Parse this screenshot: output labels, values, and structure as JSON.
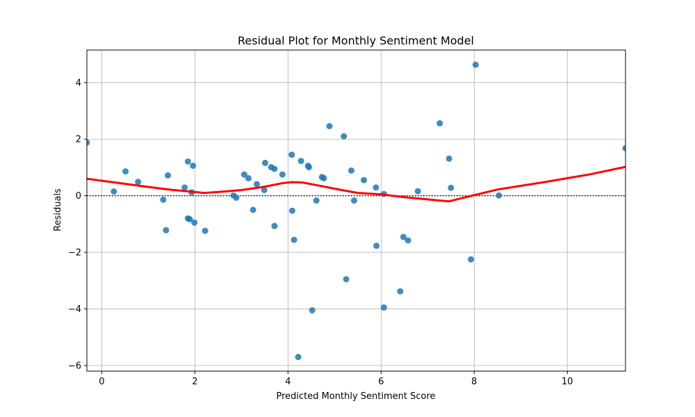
{
  "chart_data": {
    "type": "scatter",
    "title": "Residual Plot for Monthly Sentiment Model",
    "xlabel": "Predicted Monthly Sentiment Score",
    "ylabel": "Residuals",
    "xlim": [
      -0.32,
      11.25
    ],
    "ylim": [
      -6.2,
      5.15
    ],
    "xticks": [
      0,
      2,
      4,
      6,
      8,
      10
    ],
    "xtick_labels": [
      "0",
      "2",
      "4",
      "6",
      "8",
      "10"
    ],
    "yticks": [
      -6,
      -4,
      -2,
      0,
      2,
      4
    ],
    "ytick_labels": [
      "−6",
      "−4",
      "−2",
      "0",
      "2",
      "4"
    ],
    "grid": true,
    "reference_line": {
      "y": 0,
      "style": "dotted",
      "color": "#000000"
    },
    "colors": {
      "points": "#1f77b4",
      "lowess": "#ff0000"
    },
    "points": [
      {
        "x": -0.32,
        "y": 1.88
      },
      {
        "x": 0.26,
        "y": 0.15
      },
      {
        "x": 0.51,
        "y": 0.86
      },
      {
        "x": 0.78,
        "y": 0.49
      },
      {
        "x": 1.32,
        "y": -0.14
      },
      {
        "x": 1.38,
        "y": -1.22
      },
      {
        "x": 1.42,
        "y": 0.72
      },
      {
        "x": 1.78,
        "y": 0.29
      },
      {
        "x": 1.85,
        "y": 1.21
      },
      {
        "x": 1.85,
        "y": -0.8
      },
      {
        "x": 1.89,
        "y": -0.83
      },
      {
        "x": 1.93,
        "y": 0.12
      },
      {
        "x": 1.96,
        "y": 1.06
      },
      {
        "x": 1.99,
        "y": -0.95
      },
      {
        "x": 2.22,
        "y": -1.24
      },
      {
        "x": 2.83,
        "y": 0.01
      },
      {
        "x": 2.89,
        "y": -0.07
      },
      {
        "x": 3.06,
        "y": 0.75
      },
      {
        "x": 3.15,
        "y": 0.62
      },
      {
        "x": 3.25,
        "y": -0.5
      },
      {
        "x": 3.33,
        "y": 0.41
      },
      {
        "x": 3.49,
        "y": 0.2
      },
      {
        "x": 3.51,
        "y": 1.16
      },
      {
        "x": 3.64,
        "y": 1.01
      },
      {
        "x": 3.71,
        "y": 0.95
      },
      {
        "x": 3.71,
        "y": -1.07
      },
      {
        "x": 3.88,
        "y": 0.75
      },
      {
        "x": 4.08,
        "y": 1.45
      },
      {
        "x": 4.09,
        "y": -0.53
      },
      {
        "x": 4.13,
        "y": -1.56
      },
      {
        "x": 4.22,
        "y": -5.7
      },
      {
        "x": 4.28,
        "y": 1.23
      },
      {
        "x": 4.43,
        "y": 1.06
      },
      {
        "x": 4.45,
        "y": 1.01
      },
      {
        "x": 4.52,
        "y": -4.05
      },
      {
        "x": 4.61,
        "y": -0.17
      },
      {
        "x": 4.73,
        "y": 0.66
      },
      {
        "x": 4.77,
        "y": 0.62
      },
      {
        "x": 4.89,
        "y": 2.46
      },
      {
        "x": 5.2,
        "y": 2.1
      },
      {
        "x": 5.25,
        "y": -2.95
      },
      {
        "x": 5.36,
        "y": 0.89
      },
      {
        "x": 5.42,
        "y": -0.17
      },
      {
        "x": 5.63,
        "y": 0.55
      },
      {
        "x": 5.89,
        "y": 0.29
      },
      {
        "x": 5.9,
        "y": -1.77
      },
      {
        "x": 6.06,
        "y": 0.06
      },
      {
        "x": 6.06,
        "y": -3.95
      },
      {
        "x": 6.41,
        "y": -3.38
      },
      {
        "x": 6.48,
        "y": -1.46
      },
      {
        "x": 6.58,
        "y": -1.58
      },
      {
        "x": 6.79,
        "y": 0.16
      },
      {
        "x": 7.26,
        "y": 2.56
      },
      {
        "x": 7.46,
        "y": 1.31
      },
      {
        "x": 7.5,
        "y": 0.28
      },
      {
        "x": 7.93,
        "y": -2.25
      },
      {
        "x": 8.03,
        "y": 4.63
      },
      {
        "x": 8.53,
        "y": 0.01
      },
      {
        "x": 11.25,
        "y": 1.68
      }
    ],
    "lowess": {
      "x": [
        -0.32,
        0.5,
        1.0,
        1.5,
        2.0,
        2.2,
        2.5,
        3.0,
        3.5,
        3.9,
        4.1,
        4.3,
        4.6,
        5.0,
        5.5,
        6.0,
        6.5,
        7.0,
        7.45,
        7.7,
        8.0,
        8.5,
        9.0,
        9.5,
        10.0,
        10.5,
        11.25
      ],
      "y": [
        0.6,
        0.42,
        0.31,
        0.21,
        0.13,
        0.1,
        0.13,
        0.2,
        0.32,
        0.45,
        0.48,
        0.47,
        0.38,
        0.25,
        0.1,
        0.05,
        -0.05,
        -0.13,
        -0.2,
        -0.1,
        0.02,
        0.22,
        0.35,
        0.48,
        0.62,
        0.76,
        1.02
      ]
    }
  }
}
